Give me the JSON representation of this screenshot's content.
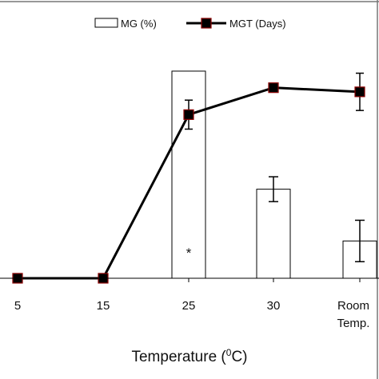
{
  "chart_data": {
    "type": "bar+line",
    "categories": [
      "5",
      "15",
      "25",
      "30",
      "Room Temp."
    ],
    "category_lines": [
      [
        "5"
      ],
      [
        "15"
      ],
      [
        "25"
      ],
      [
        "30"
      ],
      [
        "Room",
        "Temp."
      ]
    ],
    "xlabel_parts": {
      "main": "Temperature (",
      "sup": "0",
      "tail": "C)"
    },
    "series": [
      {
        "name": "MG (%)",
        "kind": "bar",
        "values": [
          0,
          0,
          100,
          43,
          18
        ],
        "errors": [
          0,
          0,
          0,
          6,
          10
        ]
      },
      {
        "name": "MGT (Days)",
        "kind": "line",
        "values": [
          0,
          0,
          79,
          92,
          90
        ],
        "errors": [
          0,
          0,
          7,
          2,
          9
        ]
      }
    ],
    "annotations": [
      {
        "category": "25",
        "text": "*"
      }
    ],
    "ylim": [
      0,
      105
    ],
    "legend": "top",
    "grid": false,
    "colors": {
      "bar_fill": "#ffffff",
      "bar_stroke": "#000000",
      "line": "#000000",
      "marker": "#000000",
      "marker_edge": "#8b0000",
      "axis": "#000000",
      "frame": "#777777"
    }
  }
}
